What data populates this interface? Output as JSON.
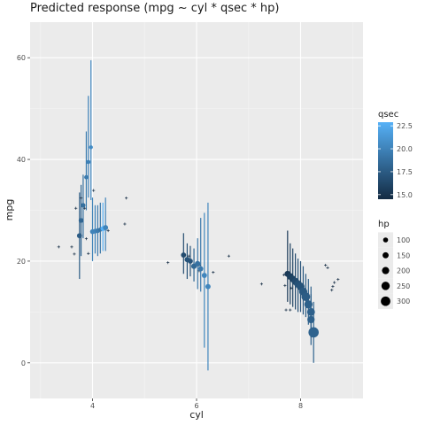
{
  "chart_data": {
    "type": "scatter",
    "title": "Predicted response (mpg ~ cyl * qsec * hp)",
    "xlabel": "cyl",
    "ylabel": "mpg",
    "xlim": [
      2.8,
      9.2
    ],
    "ylim": [
      -7,
      67
    ],
    "x_ticks": [
      4,
      6,
      8
    ],
    "y_ticks": [
      0,
      20,
      40,
      60
    ],
    "grid": true,
    "legend_position": "right",
    "legend_color": {
      "title": "qsec",
      "range": [
        14.5,
        22.9
      ],
      "ticks": [
        15.0,
        17.5,
        20.0,
        22.5
      ],
      "tick_labels": [
        "15.0",
        "17.5",
        "20.0",
        "22.5"
      ],
      "low_color": "#132B43",
      "high_color": "#56B1F7"
    },
    "legend_size": {
      "title": "hp",
      "values": [
        100,
        150,
        200,
        250,
        300
      ],
      "labels": [
        "100",
        "150",
        "200",
        "250",
        "300"
      ]
    },
    "observed": [
      {
        "x": 3.35,
        "y": 22.8
      },
      {
        "x": 3.6,
        "y": 22.8
      },
      {
        "x": 3.65,
        "y": 21.4
      },
      {
        "x": 3.68,
        "y": 30.4
      },
      {
        "x": 3.78,
        "y": 32.4
      },
      {
        "x": 3.85,
        "y": 30.4
      },
      {
        "x": 3.88,
        "y": 24.4
      },
      {
        "x": 3.92,
        "y": 21.5
      },
      {
        "x": 4.02,
        "y": 33.9
      },
      {
        "x": 4.3,
        "y": 26.0
      },
      {
        "x": 4.62,
        "y": 27.3
      },
      {
        "x": 4.65,
        "y": 32.4
      },
      {
        "x": 5.45,
        "y": 19.7
      },
      {
        "x": 5.85,
        "y": 21.0
      },
      {
        "x": 6.05,
        "y": 18.1
      },
      {
        "x": 6.32,
        "y": 17.8
      },
      {
        "x": 6.62,
        "y": 21.0
      },
      {
        "x": 6.05,
        "y": 19.2
      },
      {
        "x": 7.25,
        "y": 15.5
      },
      {
        "x": 7.68,
        "y": 17.3
      },
      {
        "x": 7.7,
        "y": 15.2
      },
      {
        "x": 7.72,
        "y": 10.4
      },
      {
        "x": 7.8,
        "y": 10.4
      },
      {
        "x": 7.82,
        "y": 14.7
      },
      {
        "x": 8.48,
        "y": 19.2
      },
      {
        "x": 8.52,
        "y": 18.7
      },
      {
        "x": 8.6,
        "y": 14.3
      },
      {
        "x": 8.62,
        "y": 15.0
      },
      {
        "x": 8.65,
        "y": 15.8
      },
      {
        "x": 8.72,
        "y": 16.4
      }
    ],
    "series": [
      {
        "cyl": 4,
        "points": [
          {
            "x": 3.75,
            "y": 25.0,
            "lo": 16.5,
            "hi": 33.5,
            "qsec": 17.6,
            "hp": 105
          },
          {
            "x": 3.78,
            "y": 28.0,
            "lo": 21.0,
            "hi": 35.0,
            "qsec": 18.2,
            "hp": 95
          },
          {
            "x": 3.82,
            "y": 31.0,
            "lo": 24.5,
            "hi": 37.0,
            "qsec": 18.8,
            "hp": 80
          },
          {
            "x": 3.88,
            "y": 36.5,
            "lo": 30.0,
            "hi": 45.5,
            "qsec": 19.5,
            "hp": 65
          },
          {
            "x": 3.92,
            "y": 39.5,
            "lo": 32.5,
            "hi": 52.5,
            "qsec": 19.9,
            "hp": 62
          },
          {
            "x": 3.97,
            "y": 42.4,
            "lo": 32.0,
            "hi": 59.5,
            "qsec": 20.5,
            "hp": 52
          },
          {
            "x": 4.0,
            "y": 25.8,
            "lo": 20.0,
            "hi": 32.5,
            "qsec": 20.0,
            "hp": 97
          },
          {
            "x": 4.05,
            "y": 25.9,
            "lo": 21.5,
            "hi": 31.0,
            "qsec": 20.0,
            "hp": 93
          },
          {
            "x": 4.1,
            "y": 26.0,
            "lo": 21.0,
            "hi": 31.0,
            "qsec": 19.5,
            "hp": 91
          },
          {
            "x": 4.15,
            "y": 26.2,
            "lo": 21.5,
            "hi": 31.5,
            "qsec": 19.0,
            "hp": 66
          },
          {
            "x": 4.2,
            "y": 26.4,
            "lo": 22.0,
            "hi": 31.5,
            "qsec": 22.9,
            "hp": 95
          },
          {
            "x": 4.25,
            "y": 26.6,
            "lo": 22.0,
            "hi": 32.5,
            "qsec": 20.0,
            "hp": 109
          }
        ]
      },
      {
        "cyl": 6,
        "points": [
          {
            "x": 5.75,
            "y": 21.2,
            "lo": 17.5,
            "hi": 25.5,
            "qsec": 16.5,
            "hp": 110
          },
          {
            "x": 5.82,
            "y": 20.3,
            "lo": 16.5,
            "hi": 23.5,
            "qsec": 17.0,
            "hp": 110
          },
          {
            "x": 5.88,
            "y": 20.0,
            "lo": 17.0,
            "hi": 23.0,
            "qsec": 17.0,
            "hp": 110
          },
          {
            "x": 5.95,
            "y": 19.0,
            "lo": 16.0,
            "hi": 22.5,
            "qsec": 18.3,
            "hp": 123
          },
          {
            "x": 6.02,
            "y": 19.5,
            "lo": 14.5,
            "hi": 24.5,
            "qsec": 18.9,
            "hp": 123
          },
          {
            "x": 6.08,
            "y": 18.5,
            "lo": 14.0,
            "hi": 28.5,
            "qsec": 19.4,
            "hp": 105
          },
          {
            "x": 6.15,
            "y": 17.2,
            "lo": 3.0,
            "hi": 29.5,
            "qsec": 20.2,
            "hp": 110
          },
          {
            "x": 6.22,
            "y": 15.0,
            "lo": -1.5,
            "hi": 31.5,
            "qsec": 20.2,
            "hp": 110
          }
        ]
      },
      {
        "cyl": 8,
        "points": [
          {
            "x": 7.75,
            "y": 17.5,
            "lo": 12.0,
            "hi": 26.0,
            "qsec": 15.4,
            "hp": 150
          },
          {
            "x": 7.8,
            "y": 17.0,
            "lo": 11.5,
            "hi": 23.5,
            "qsec": 15.8,
            "hp": 175
          },
          {
            "x": 7.85,
            "y": 16.5,
            "lo": 11.0,
            "hi": 22.5,
            "qsec": 16.0,
            "hp": 180
          },
          {
            "x": 7.9,
            "y": 16.0,
            "lo": 10.5,
            "hi": 21.5,
            "qsec": 16.4,
            "hp": 205
          },
          {
            "x": 7.95,
            "y": 15.5,
            "lo": 10.0,
            "hi": 20.5,
            "qsec": 16.9,
            "hp": 215
          },
          {
            "x": 8.0,
            "y": 15.0,
            "lo": 10.0,
            "hi": 20.0,
            "qsec": 17.0,
            "hp": 230
          },
          {
            "x": 8.05,
            "y": 14.0,
            "lo": 9.5,
            "hi": 19.0,
            "qsec": 17.4,
            "hp": 245
          },
          {
            "x": 8.1,
            "y": 13.0,
            "lo": 9.0,
            "hi": 17.5,
            "qsec": 17.6,
            "hp": 264
          },
          {
            "x": 8.15,
            "y": 11.5,
            "lo": 7.5,
            "hi": 16.5,
            "qsec": 17.8,
            "hp": 245
          },
          {
            "x": 8.2,
            "y": 10.0,
            "lo": 5.0,
            "hi": 15.0,
            "qsec": 17.9,
            "hp": 230
          },
          {
            "x": 8.2,
            "y": 8.5,
            "lo": 3.5,
            "hi": 13.5,
            "qsec": 17.9,
            "hp": 205
          },
          {
            "x": 8.25,
            "y": 6.0,
            "lo": 0.0,
            "hi": 12.0,
            "qsec": 18.0,
            "hp": 335
          }
        ]
      }
    ]
  }
}
